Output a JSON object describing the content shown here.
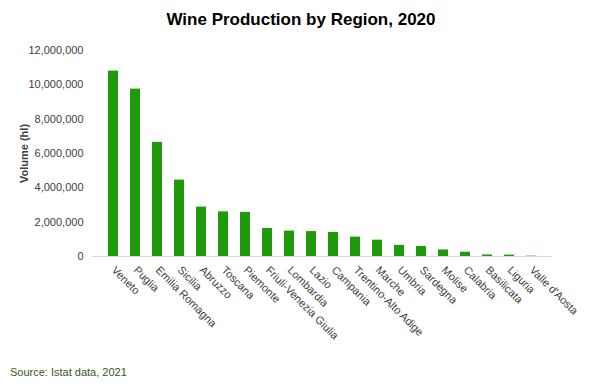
{
  "chart_data": {
    "type": "bar",
    "title": "Wine Production by Region, 2020",
    "y_label": "Volume (hl)",
    "caption": "Source: Istat data, 2021",
    "categories": [
      "Veneto",
      "Puglia",
      "Emilia Romagna",
      "Sicilia",
      "Abruzzo",
      "Toscana",
      "Piemonte",
      "Friuli-Venezia Giulia",
      "Lombardia",
      "Lazio",
      "Campania",
      "Trentino-Alto Adige",
      "Marche",
      "Umbria",
      "Sardegna",
      "Molise",
      "Calabria",
      "Basilicata",
      "Liguria",
      "Valle d'Aosta"
    ],
    "values": [
      10800000,
      9750000,
      6650000,
      4450000,
      2880000,
      2600000,
      2570000,
      1630000,
      1480000,
      1450000,
      1400000,
      1130000,
      950000,
      650000,
      580000,
      380000,
      250000,
      90000,
      80000,
      20000
    ],
    "color": "#1f9a0a",
    "ylim": [
      0,
      12000000
    ],
    "yticks": [
      0,
      {
        "value": 2000000,
        "label": "2,000,000"
      },
      {
        "value": 4000000,
        "label": "4,000,000"
      },
      {
        "value": 6000000,
        "label": "6,000,000"
      },
      {
        "value": 8000000,
        "label": "8,000,000"
      },
      {
        "value": 10000000,
        "label": "10,000,000"
      },
      {
        "value": 12000000,
        "label": "12,000,000"
      }
    ],
    "grid": false
  }
}
